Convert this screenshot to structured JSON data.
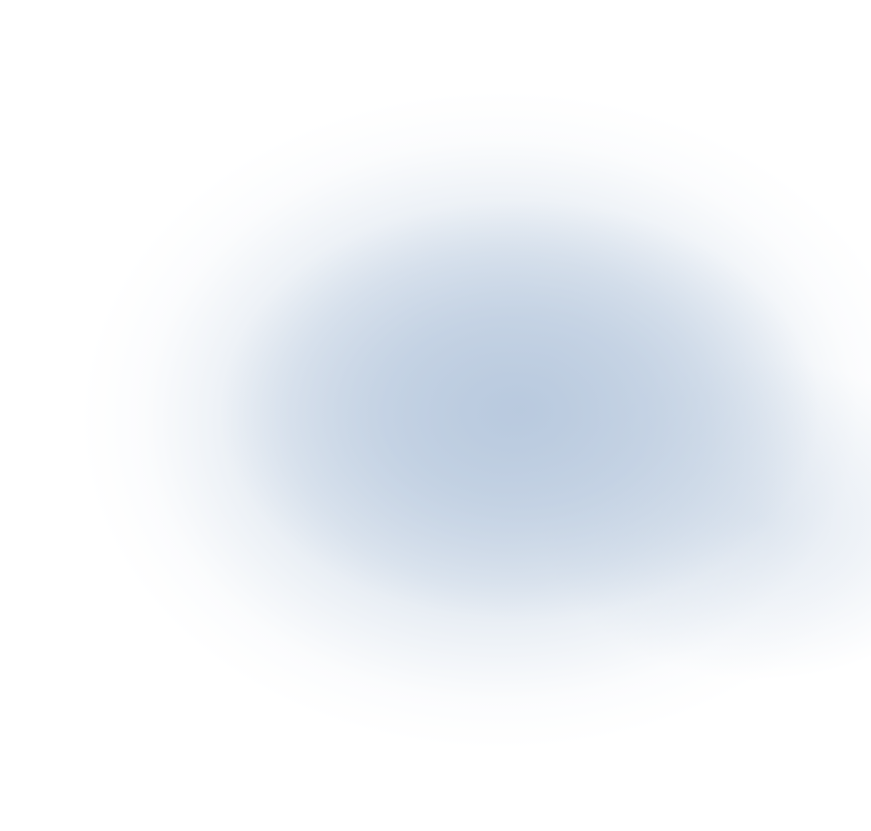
{
  "background": {
    "base_color": "#ffffff",
    "glow_color": "#b8c9de",
    "description_visible_text": ""
  }
}
